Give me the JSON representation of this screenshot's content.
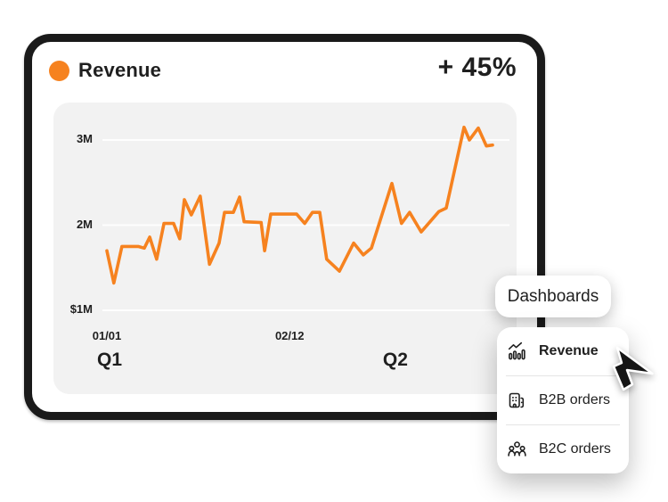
{
  "colors": {
    "accent_orange": "#F6821F",
    "ink": "#1F1F1F",
    "card_border": "#1A1A1A",
    "panel_gray": "#F2F2F2",
    "gridline": "#FFFFFF",
    "divider": "#E5E5E5"
  },
  "card": {
    "legend_label": "Revenue",
    "delta_label": "+ 45%"
  },
  "chart_data": {
    "type": "line",
    "title": "Revenue",
    "unit": "USD millions",
    "line_color": "#F6821F",
    "grid": true,
    "legend_position": "top-left",
    "y_axis": {
      "ticks": [
        {
          "label": "3M",
          "value": 3
        },
        {
          "label": "2M",
          "value": 2
        },
        {
          "label": "$1M",
          "value": 1
        }
      ],
      "range_shown": [
        1,
        3.3
      ]
    },
    "x_axis": {
      "date_ticks": [
        {
          "label": "01/01",
          "pos": 0.0
        },
        {
          "label": "02/12",
          "pos": 0.474
        }
      ],
      "quarter_ticks": [
        {
          "label": "Q1",
          "pos": 0.007
        },
        {
          "label": "Q2",
          "pos": 0.748
        }
      ]
    },
    "points": [
      [
        0.0,
        1.7
      ],
      [
        0.018,
        1.32
      ],
      [
        0.039,
        1.75
      ],
      [
        0.081,
        1.75
      ],
      [
        0.097,
        1.73
      ],
      [
        0.111,
        1.86
      ],
      [
        0.129,
        1.6
      ],
      [
        0.148,
        2.02
      ],
      [
        0.173,
        2.02
      ],
      [
        0.189,
        1.84
      ],
      [
        0.201,
        2.3
      ],
      [
        0.219,
        2.12
      ],
      [
        0.242,
        2.34
      ],
      [
        0.266,
        1.54
      ],
      [
        0.291,
        1.79
      ],
      [
        0.305,
        2.15
      ],
      [
        0.328,
        2.15
      ],
      [
        0.344,
        2.33
      ],
      [
        0.356,
        2.04
      ],
      [
        0.4,
        2.03
      ],
      [
        0.409,
        1.7
      ],
      [
        0.425,
        2.13
      ],
      [
        0.492,
        2.13
      ],
      [
        0.513,
        2.02
      ],
      [
        0.533,
        2.15
      ],
      [
        0.552,
        2.15
      ],
      [
        0.57,
        1.6
      ],
      [
        0.603,
        1.46
      ],
      [
        0.64,
        1.79
      ],
      [
        0.665,
        1.65
      ],
      [
        0.686,
        1.73
      ],
      [
        0.739,
        2.49
      ],
      [
        0.764,
        2.02
      ],
      [
        0.785,
        2.15
      ],
      [
        0.815,
        1.92
      ],
      [
        0.861,
        2.16
      ],
      [
        0.88,
        2.2
      ],
      [
        0.926,
        3.15
      ],
      [
        0.94,
        3.0
      ],
      [
        0.963,
        3.14
      ],
      [
        0.984,
        2.93
      ],
      [
        1.0,
        2.94
      ]
    ]
  },
  "dashboards_button": {
    "label": "Dashboards"
  },
  "dropdown_menu": {
    "items": [
      {
        "label": "Revenue",
        "icon": "chart-trend-icon",
        "selected": true
      },
      {
        "label": "B2B orders",
        "icon": "building-icon",
        "selected": false
      },
      {
        "label": "B2C orders",
        "icon": "people-group-icon",
        "selected": false
      }
    ]
  },
  "cursor": {
    "icon": "arrow-pointer"
  }
}
